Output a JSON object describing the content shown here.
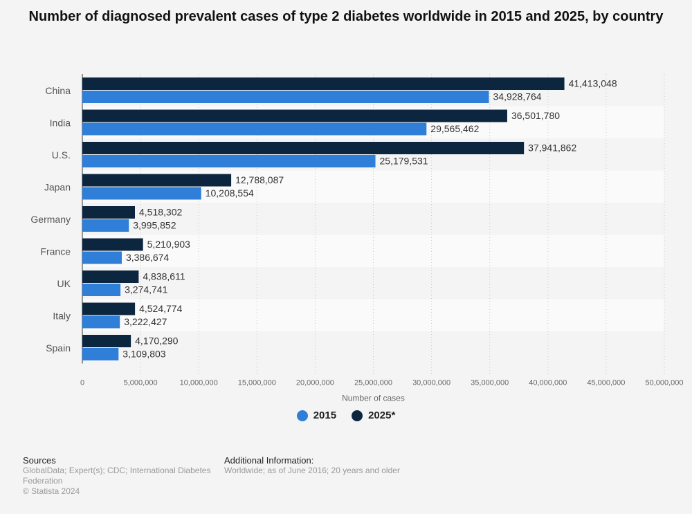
{
  "title": "Number of diagnosed prevalent cases of type 2 diabetes worldwide in 2015 and 2025, by country",
  "colors": {
    "s2015": "#2f7ed8",
    "s2025": "#0d2640",
    "grid": "#c8c8c8",
    "band": "#ececec"
  },
  "chart_data": {
    "type": "bar",
    "orientation": "horizontal",
    "categories": [
      "China",
      "India",
      "U.S.",
      "Japan",
      "Germany",
      "France",
      "UK",
      "Italy",
      "Spain"
    ],
    "series": [
      {
        "name": "2025*",
        "values": [
          41413048,
          36501780,
          37941862,
          12788087,
          4518302,
          5210903,
          4838611,
          4524774,
          4170290
        ],
        "labels": [
          "41,413,048",
          "36,501,780",
          "37,941,862",
          "12,788,087",
          "4,518,302",
          "5,210,903",
          "4,838,611",
          "4,524,774",
          "4,170,290"
        ]
      },
      {
        "name": "2015",
        "values": [
          34928764,
          29565462,
          25179531,
          10208554,
          3995852,
          3386674,
          3274741,
          3222427,
          3109803
        ],
        "labels": [
          "34,928,764",
          "29,565,462",
          "25,179,531",
          "10,208,554",
          "3,995,852",
          "3,386,674",
          "3,274,741",
          "3,222,427",
          "3,109,803"
        ]
      }
    ],
    "xlabel": "Number of cases",
    "xlim": [
      0,
      50000000
    ],
    "ticks": [
      0,
      5000000,
      10000000,
      15000000,
      20000000,
      25000000,
      30000000,
      35000000,
      40000000,
      45000000,
      50000000
    ],
    "tick_labels": [
      "0",
      "5,000,000",
      "10,000,000",
      "15,000,000",
      "20,000,000",
      "25,000,000",
      "30,000,000",
      "35,000,000",
      "40,000,000",
      "45,000,000",
      "50,000,000"
    ],
    "grid": true,
    "legend_position": "bottom-center"
  },
  "legend": [
    {
      "label": "2015",
      "color": "#2f7ed8"
    },
    {
      "label": "2025*",
      "color": "#0d2640"
    }
  ],
  "footer": {
    "sources_title": "Sources",
    "sources_text": "GlobalData; Expert(s); CDC; International Diabetes Federation",
    "copyright": "© Statista 2024",
    "additional_title": "Additional Information:",
    "additional_text": "Worldwide; as of June 2016; 20 years and older"
  }
}
